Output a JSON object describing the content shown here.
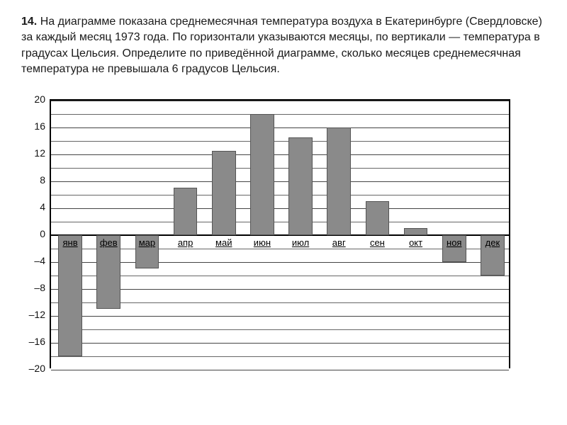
{
  "problem": {
    "number": "14.",
    "text_part1": "На диаграмме показана среднемесячная температура воздуха в Екатеринбурге (Свердловске) за каждый месяц 1973 года. По горизонтали указываются месяцы, по вертикали",
    "dash": "—",
    "text_part2": "температура в градусах Цельсия. Определите по приведённой диаграмме, сколько месяцев среднемесячная температура не превышала 6 градусов Цельсия."
  },
  "chart": {
    "type": "bar",
    "months": [
      "янв",
      "фев",
      "мар",
      "апр",
      "май",
      "июн",
      "июл",
      "авг",
      "сен",
      "окт",
      "ноя",
      "дек"
    ],
    "values": [
      -18,
      -11,
      -5,
      7,
      12.5,
      18,
      14.5,
      16,
      5,
      1,
      -4,
      -6
    ],
    "bar_color": "#8a8a8a",
    "bar_border": "#555555",
    "ylim": [
      -20,
      20
    ],
    "ytick_step": 4,
    "yminor_step": 2,
    "yticks": [
      20,
      16,
      12,
      8,
      4,
      0,
      -4,
      -8,
      -12,
      -16,
      -20
    ],
    "bg": "#ffffff",
    "grid_color": "#444444",
    "minor_color": "#666666",
    "bar_width": 0.62,
    "font_size_ticks": 14,
    "font_size_labels": 13
  }
}
